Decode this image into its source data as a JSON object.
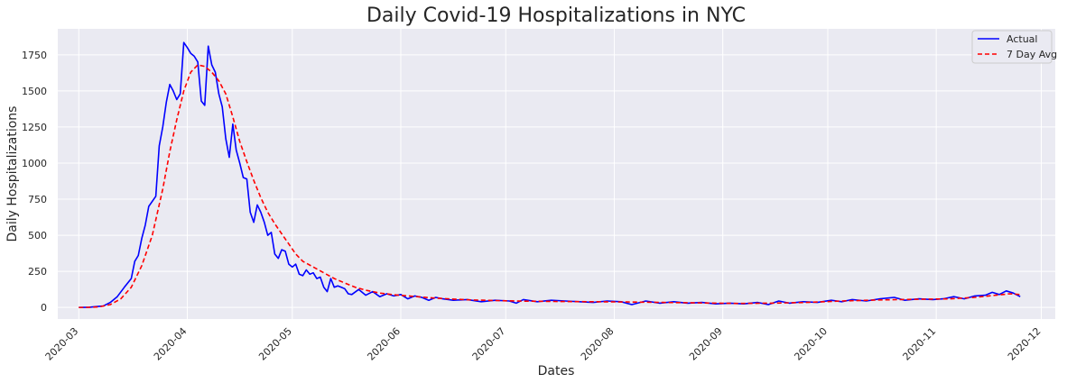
{
  "chart_data": {
    "type": "line",
    "title": "Daily Covid-19 Hospitalizations in NYC",
    "xlabel": "Dates",
    "ylabel": "Daily Hospitalizations",
    "grid": true,
    "legend_position": "top-right",
    "xlim": [
      "2020-02-24",
      "2020-12-05"
    ],
    "ylim": [
      -80,
      1930
    ],
    "x_ticks": [
      "2020-03",
      "2020-04",
      "2020-05",
      "2020-06",
      "2020-07",
      "2020-08",
      "2020-09",
      "2020-10",
      "2020-11",
      "2020-12"
    ],
    "y_ticks": [
      "0",
      "250",
      "500",
      "750",
      "1000",
      "1250",
      "1500",
      "1750"
    ],
    "y_tick_values": [
      0,
      250,
      500,
      750,
      1000,
      1250,
      1500,
      1750
    ],
    "series": [
      {
        "name": "Actual",
        "color": "#0000ff",
        "style": "solid",
        "points": [
          [
            "2020-03-01",
            0
          ],
          [
            "2020-03-04",
            2
          ],
          [
            "2020-03-06",
            6
          ],
          [
            "2020-03-08",
            10
          ],
          [
            "2020-03-10",
            35
          ],
          [
            "2020-03-12",
            75
          ],
          [
            "2020-03-14",
            140
          ],
          [
            "2020-03-16",
            200
          ],
          [
            "2020-03-17",
            320
          ],
          [
            "2020-03-18",
            360
          ],
          [
            "2020-03-19",
            480
          ],
          [
            "2020-03-20",
            570
          ],
          [
            "2020-03-21",
            700
          ],
          [
            "2020-03-23",
            770
          ],
          [
            "2020-03-24",
            1120
          ],
          [
            "2020-03-25",
            1250
          ],
          [
            "2020-03-26",
            1420
          ],
          [
            "2020-03-27",
            1545
          ],
          [
            "2020-03-28",
            1500
          ],
          [
            "2020-03-29",
            1440
          ],
          [
            "2020-03-30",
            1480
          ],
          [
            "2020-03-31",
            1835
          ],
          [
            "2020-04-01",
            1800
          ],
          [
            "2020-04-02",
            1760
          ],
          [
            "2020-04-03",
            1740
          ],
          [
            "2020-04-04",
            1700
          ],
          [
            "2020-04-05",
            1430
          ],
          [
            "2020-04-06",
            1400
          ],
          [
            "2020-04-07",
            1810
          ],
          [
            "2020-04-08",
            1680
          ],
          [
            "2020-04-09",
            1630
          ],
          [
            "2020-04-10",
            1480
          ],
          [
            "2020-04-11",
            1390
          ],
          [
            "2020-04-12",
            1170
          ],
          [
            "2020-04-13",
            1040
          ],
          [
            "2020-04-14",
            1270
          ],
          [
            "2020-04-15",
            1090
          ],
          [
            "2020-04-16",
            1000
          ],
          [
            "2020-04-17",
            900
          ],
          [
            "2020-04-18",
            890
          ],
          [
            "2020-04-19",
            660
          ],
          [
            "2020-04-20",
            590
          ],
          [
            "2020-04-21",
            710
          ],
          [
            "2020-04-22",
            660
          ],
          [
            "2020-04-23",
            590
          ],
          [
            "2020-04-24",
            500
          ],
          [
            "2020-04-25",
            520
          ],
          [
            "2020-04-26",
            370
          ],
          [
            "2020-04-27",
            340
          ],
          [
            "2020-04-28",
            400
          ],
          [
            "2020-04-29",
            390
          ],
          [
            "2020-04-30",
            300
          ],
          [
            "2020-05-01",
            280
          ],
          [
            "2020-05-02",
            300
          ],
          [
            "2020-05-03",
            230
          ],
          [
            "2020-05-04",
            220
          ],
          [
            "2020-05-05",
            260
          ],
          [
            "2020-05-06",
            230
          ],
          [
            "2020-05-07",
            240
          ],
          [
            "2020-05-08",
            200
          ],
          [
            "2020-05-09",
            210
          ],
          [
            "2020-05-10",
            140
          ],
          [
            "2020-05-11",
            110
          ],
          [
            "2020-05-12",
            200
          ],
          [
            "2020-05-13",
            140
          ],
          [
            "2020-05-14",
            150
          ],
          [
            "2020-05-15",
            140
          ],
          [
            "2020-05-16",
            130
          ],
          [
            "2020-05-17",
            95
          ],
          [
            "2020-05-18",
            90
          ],
          [
            "2020-05-20",
            125
          ],
          [
            "2020-05-22",
            85
          ],
          [
            "2020-05-24",
            110
          ],
          [
            "2020-05-26",
            75
          ],
          [
            "2020-05-28",
            95
          ],
          [
            "2020-05-30",
            80
          ],
          [
            "2020-06-01",
            90
          ],
          [
            "2020-06-03",
            60
          ],
          [
            "2020-06-05",
            80
          ],
          [
            "2020-06-07",
            70
          ],
          [
            "2020-06-09",
            50
          ],
          [
            "2020-06-11",
            70
          ],
          [
            "2020-06-13",
            60
          ],
          [
            "2020-06-16",
            50
          ],
          [
            "2020-06-20",
            55
          ],
          [
            "2020-06-24",
            40
          ],
          [
            "2020-06-28",
            50
          ],
          [
            "2020-07-02",
            45
          ],
          [
            "2020-07-04",
            30
          ],
          [
            "2020-07-06",
            55
          ],
          [
            "2020-07-10",
            40
          ],
          [
            "2020-07-14",
            50
          ],
          [
            "2020-07-18",
            45
          ],
          [
            "2020-07-22",
            40
          ],
          [
            "2020-07-26",
            35
          ],
          [
            "2020-07-30",
            45
          ],
          [
            "2020-08-03",
            40
          ],
          [
            "2020-08-06",
            20
          ],
          [
            "2020-08-10",
            45
          ],
          [
            "2020-08-14",
            30
          ],
          [
            "2020-08-18",
            40
          ],
          [
            "2020-08-22",
            30
          ],
          [
            "2020-08-26",
            35
          ],
          [
            "2020-08-30",
            25
          ],
          [
            "2020-09-03",
            30
          ],
          [
            "2020-09-07",
            25
          ],
          [
            "2020-09-11",
            35
          ],
          [
            "2020-09-14",
            20
          ],
          [
            "2020-09-17",
            45
          ],
          [
            "2020-09-20",
            30
          ],
          [
            "2020-09-24",
            40
          ],
          [
            "2020-09-28",
            35
          ],
          [
            "2020-10-02",
            50
          ],
          [
            "2020-10-05",
            40
          ],
          [
            "2020-10-08",
            55
          ],
          [
            "2020-10-12",
            45
          ],
          [
            "2020-10-16",
            60
          ],
          [
            "2020-10-20",
            70
          ],
          [
            "2020-10-23",
            50
          ],
          [
            "2020-10-27",
            60
          ],
          [
            "2020-10-31",
            55
          ],
          [
            "2020-11-03",
            60
          ],
          [
            "2020-11-06",
            75
          ],
          [
            "2020-11-09",
            60
          ],
          [
            "2020-11-12",
            80
          ],
          [
            "2020-11-15",
            85
          ],
          [
            "2020-11-17",
            105
          ],
          [
            "2020-11-19",
            90
          ],
          [
            "2020-11-21",
            115
          ],
          [
            "2020-11-23",
            100
          ],
          [
            "2020-11-25",
            75
          ]
        ]
      },
      {
        "name": "7 Day Avg",
        "color": "#ff0000",
        "style": "dashed",
        "points": [
          [
            "2020-03-01",
            0
          ],
          [
            "2020-03-04",
            1
          ],
          [
            "2020-03-07",
            5
          ],
          [
            "2020-03-10",
            20
          ],
          [
            "2020-03-13",
            60
          ],
          [
            "2020-03-16",
            140
          ],
          [
            "2020-03-19",
            290
          ],
          [
            "2020-03-22",
            500
          ],
          [
            "2020-03-25",
            820
          ],
          [
            "2020-03-27",
            1080
          ],
          [
            "2020-03-29",
            1300
          ],
          [
            "2020-03-31",
            1500
          ],
          [
            "2020-04-02",
            1630
          ],
          [
            "2020-04-04",
            1680
          ],
          [
            "2020-04-06",
            1670
          ],
          [
            "2020-04-08",
            1630
          ],
          [
            "2020-04-10",
            1570
          ],
          [
            "2020-04-12",
            1480
          ],
          [
            "2020-04-14",
            1320
          ],
          [
            "2020-04-16",
            1150
          ],
          [
            "2020-04-18",
            1010
          ],
          [
            "2020-04-20",
            880
          ],
          [
            "2020-04-22",
            760
          ],
          [
            "2020-04-24",
            660
          ],
          [
            "2020-04-26",
            580
          ],
          [
            "2020-04-28",
            510
          ],
          [
            "2020-04-30",
            440
          ],
          [
            "2020-05-02",
            370
          ],
          [
            "2020-05-04",
            320
          ],
          [
            "2020-05-07",
            280
          ],
          [
            "2020-05-10",
            240
          ],
          [
            "2020-05-13",
            200
          ],
          [
            "2020-05-16",
            170
          ],
          [
            "2020-05-19",
            140
          ],
          [
            "2020-05-22",
            120
          ],
          [
            "2020-05-26",
            100
          ],
          [
            "2020-05-30",
            88
          ],
          [
            "2020-06-04",
            78
          ],
          [
            "2020-06-10",
            66
          ],
          [
            "2020-06-16",
            58
          ],
          [
            "2020-06-22",
            52
          ],
          [
            "2020-06-28",
            48
          ],
          [
            "2020-07-05",
            44
          ],
          [
            "2020-07-15",
            42
          ],
          [
            "2020-07-25",
            40
          ],
          [
            "2020-08-05",
            38
          ],
          [
            "2020-08-15",
            35
          ],
          [
            "2020-08-25",
            32
          ],
          [
            "2020-09-05",
            28
          ],
          [
            "2020-09-15",
            30
          ],
          [
            "2020-09-25",
            35
          ],
          [
            "2020-10-05",
            45
          ],
          [
            "2020-10-15",
            52
          ],
          [
            "2020-10-25",
            56
          ],
          [
            "2020-11-05",
            60
          ],
          [
            "2020-11-12",
            70
          ],
          [
            "2020-11-18",
            85
          ],
          [
            "2020-11-22",
            95
          ],
          [
            "2020-11-25",
            90
          ]
        ]
      }
    ]
  }
}
